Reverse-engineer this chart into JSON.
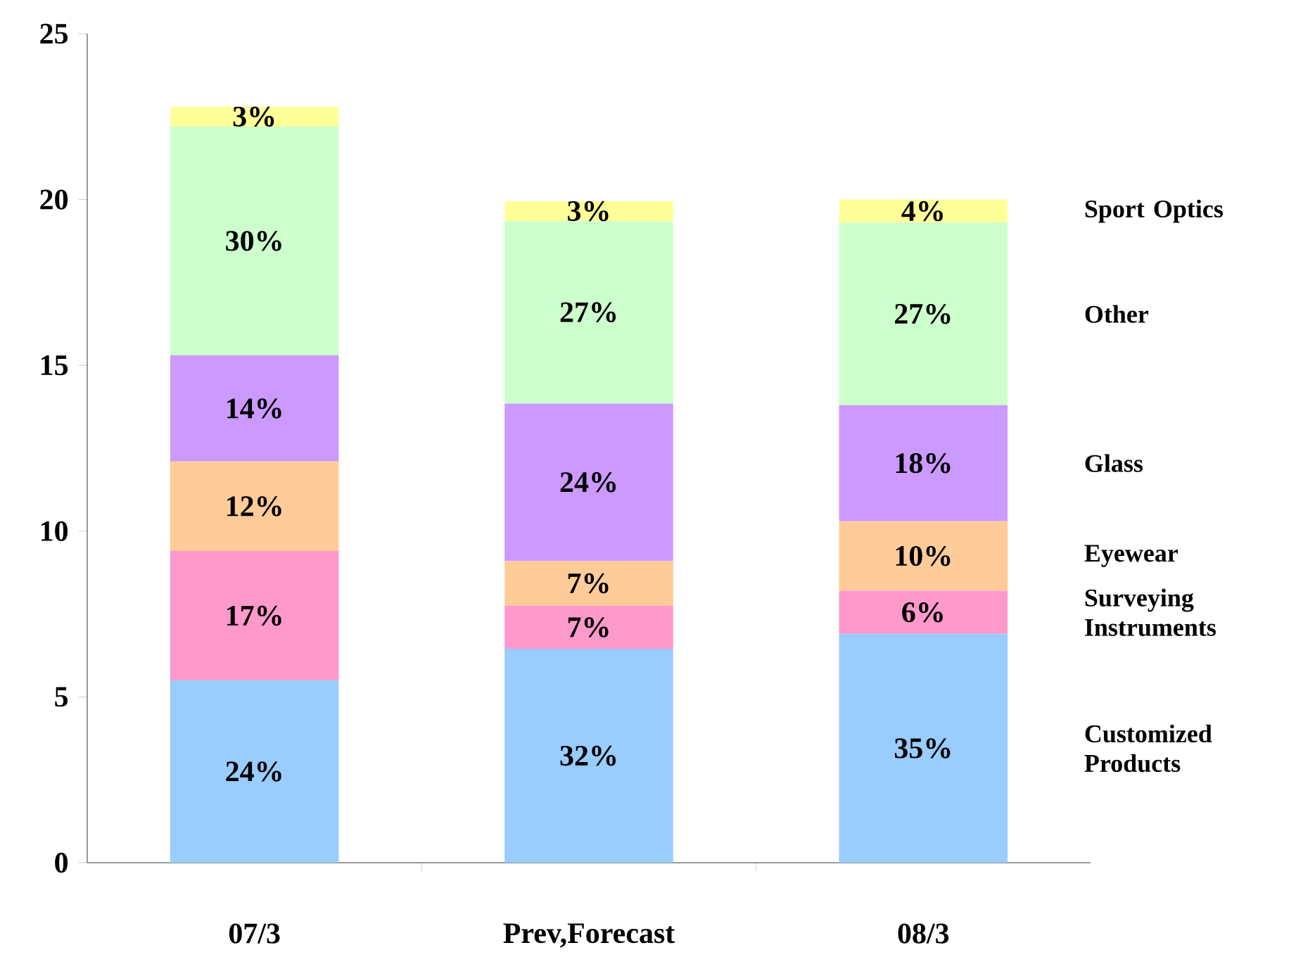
{
  "chart_data": {
    "type": "bar",
    "stacked": true,
    "categories": [
      "07/3",
      "Prev,Forecast",
      "08/3"
    ],
    "series": [
      {
        "name": "Customized Products",
        "color": "#99ccff",
        "values": [
          5.5,
          6.45,
          6.9
        ]
      },
      {
        "name": "Surveying Instruments",
        "color": "#ff99cc",
        "values": [
          3.9,
          1.3,
          1.3
        ]
      },
      {
        "name": "Eyewear",
        "color": "#ffcc99",
        "values": [
          2.7,
          1.35,
          2.1
        ]
      },
      {
        "name": "Glass",
        "color": "#cc99ff",
        "values": [
          3.2,
          4.75,
          3.5
        ]
      },
      {
        "name": "Other",
        "color": "#ccffcc",
        "values": [
          6.9,
          5.5,
          5.5
        ]
      },
      {
        "name": "Sport Optics",
        "color": "#ffff99",
        "values": [
          0.6,
          0.6,
          0.7
        ]
      }
    ],
    "annotations": [
      "24%",
      "17%",
      "12%",
      "14%",
      "30%",
      "3%",
      "32%",
      "7%",
      "7%",
      "24%",
      "27%",
      "3%",
      "35%",
      "6%",
      "10%",
      "18%",
      "27%",
      "4%"
    ],
    "ylim": [
      0,
      25
    ],
    "yticks": [
      0,
      5,
      10,
      15,
      20,
      25
    ],
    "grid": false
  }
}
